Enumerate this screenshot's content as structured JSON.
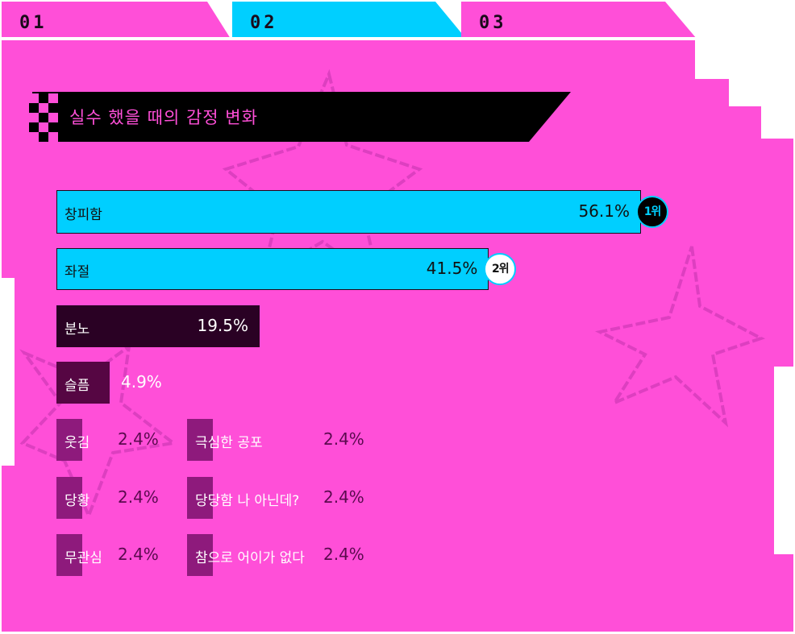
{
  "tabs": [
    {
      "label": "01",
      "active": false
    },
    {
      "label": "02",
      "active": true
    },
    {
      "label": "03",
      "active": false
    }
  ],
  "colors": {
    "background": "#ff4fd8",
    "highlight": "#00cfff",
    "dark": "#2a0124",
    "mid": "#560643",
    "small": "#8e1a7c",
    "value_text": "#5a0a4e"
  },
  "chart_data": {
    "type": "bar",
    "title": "실수 했을 때의 감정 변화",
    "unit": "%",
    "categories": [
      "창피함",
      "좌절",
      "분노",
      "슬픔",
      "웃김",
      "극심한 공포",
      "당황",
      "당당함 나 아닌데?",
      "무관심",
      "참으로 어이가 없다"
    ],
    "values": [
      56.1,
      41.5,
      19.5,
      4.9,
      2.4,
      2.4,
      2.4,
      2.4,
      2.4,
      2.4
    ],
    "value_labels": [
      "56.1%",
      "41.5%",
      "19.5%",
      "4.9%",
      "2.4%",
      "2.4%",
      "2.4%",
      "2.4%",
      "2.4%",
      "2.4%"
    ],
    "ranks": [
      "1위",
      "2위"
    ],
    "xlim": [
      0,
      56.1
    ]
  }
}
